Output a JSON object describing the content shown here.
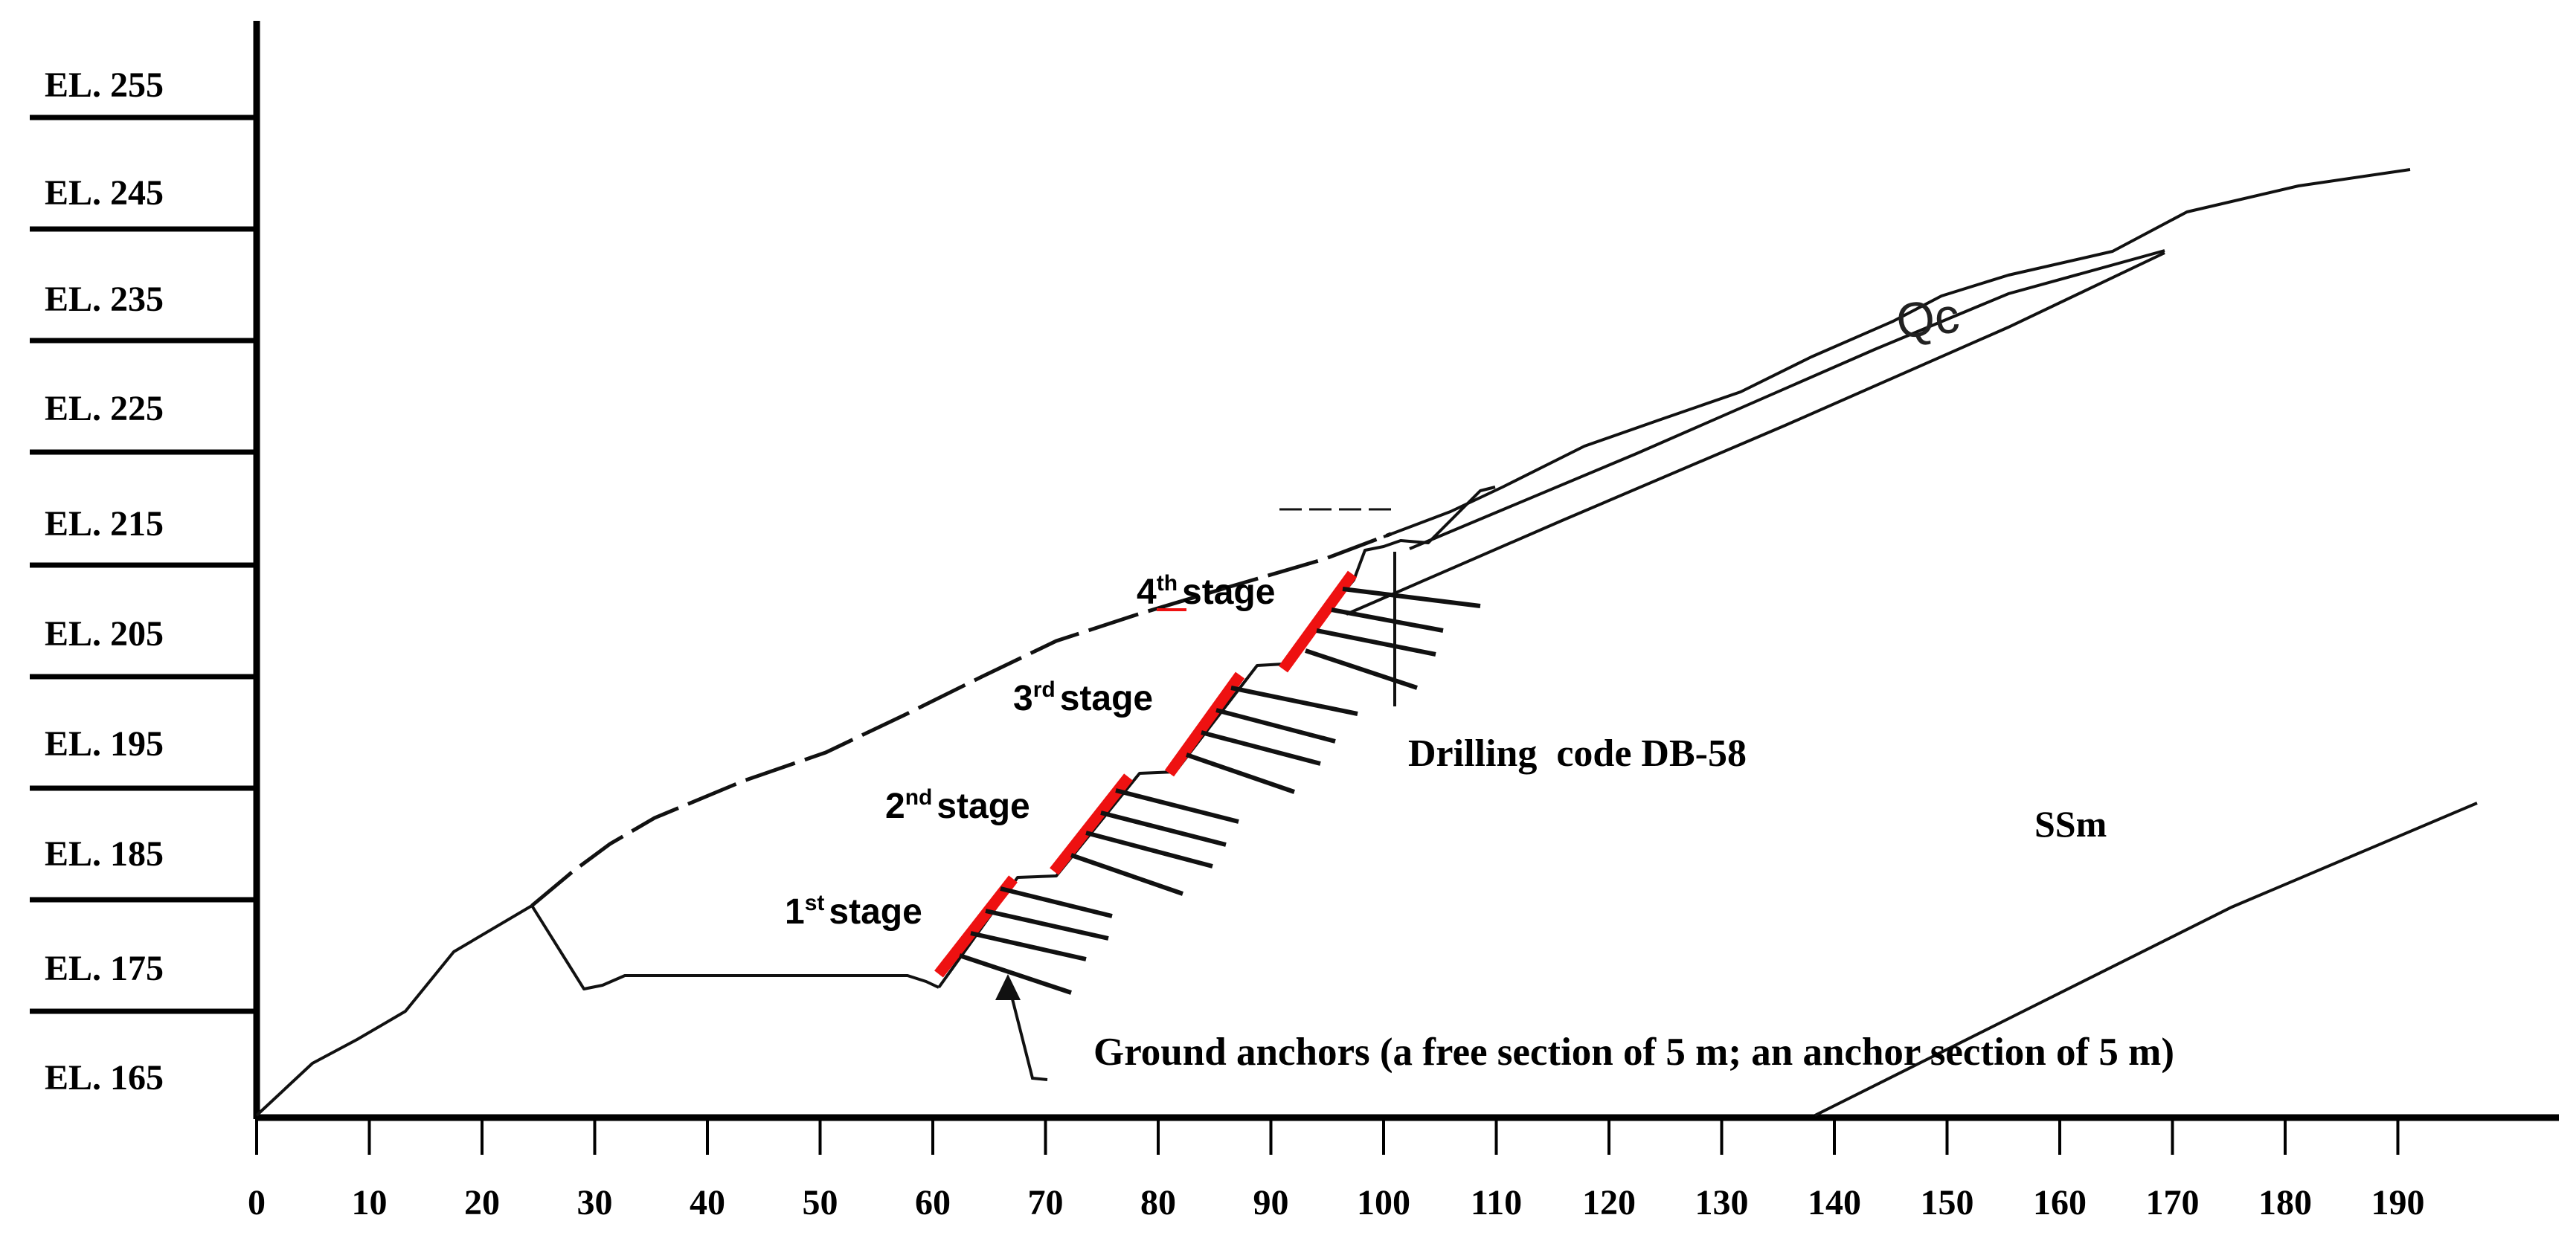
{
  "elevation_labels": [
    "EL. 255",
    "EL. 245",
    "EL. 235",
    "EL. 225",
    "EL. 215",
    "EL. 205",
    "EL. 195",
    "EL. 185",
    "EL. 175",
    "EL. 165"
  ],
  "x_axis_ticks": [
    "0",
    "10",
    "20",
    "30",
    "40",
    "50",
    "60",
    "70",
    "80",
    "90",
    "100",
    "110",
    "120",
    "130",
    "140",
    "150",
    "160",
    "170",
    "180",
    "190"
  ],
  "stages": [
    {
      "num": "1",
      "sup": "st",
      "word": "stage"
    },
    {
      "num": "2",
      "sup": "nd",
      "word": "stage"
    },
    {
      "num": "3",
      "sup": "rd",
      "word": "stage"
    },
    {
      "num": "4",
      "sup": "th",
      "word": "stage"
    }
  ],
  "labels": {
    "drilling": "Drilling  code DB-58",
    "ssm": "SSm",
    "qc": "Qc",
    "ground_anchors": "Ground anchors (a free section of 5 m; an anchor section of 5 m)"
  },
  "colors": {
    "anchor_face": "#ee1111",
    "lines": "#111111"
  }
}
